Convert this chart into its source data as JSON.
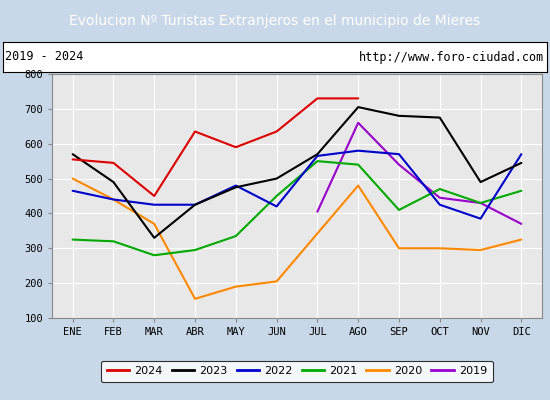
{
  "title": "Evolucion Nº Turistas Extranjeros en el municipio de Mieres",
  "subtitle_left": "2019 - 2024",
  "subtitle_right": "http://www.foro-ciudad.com",
  "months": [
    "ENE",
    "FEB",
    "MAR",
    "ABR",
    "MAY",
    "JUN",
    "JUL",
    "AGO",
    "SEP",
    "OCT",
    "NOV",
    "DIC"
  ],
  "ylim": [
    100,
    800
  ],
  "yticks": [
    100,
    200,
    300,
    400,
    500,
    600,
    700,
    800
  ],
  "series": {
    "2024": {
      "color": "#dd0000",
      "data": [
        555,
        545,
        450,
        635,
        590,
        635,
        730,
        730,
        null,
        null,
        null,
        null
      ]
    },
    "2023": {
      "color": "#000000",
      "data": [
        570,
        490,
        330,
        425,
        475,
        500,
        570,
        705,
        680,
        675,
        490,
        545
      ]
    },
    "2022": {
      "color": "#0000cc",
      "data": [
        465,
        440,
        425,
        425,
        480,
        420,
        565,
        580,
        570,
        425,
        385,
        570
      ]
    },
    "2021": {
      "color": "#00aa00",
      "data": [
        325,
        320,
        280,
        295,
        335,
        450,
        550,
        540,
        410,
        470,
        430,
        465
      ]
    },
    "2020": {
      "color": "#ff8800",
      "data": [
        500,
        440,
        370,
        155,
        190,
        205,
        null,
        480,
        300,
        300,
        295,
        325
      ]
    },
    "2019": {
      "color": "#9900cc",
      "data": [
        null,
        null,
        null,
        null,
        null,
        null,
        405,
        660,
        540,
        445,
        430,
        370
      ]
    }
  },
  "title_bg_color": "#5b9bd5",
  "title_color": "white",
  "plot_bg_color": "#e8e8e8",
  "header_bg_color": "white",
  "outer_bg_color": "#c8d8e8",
  "grid_color": "white"
}
